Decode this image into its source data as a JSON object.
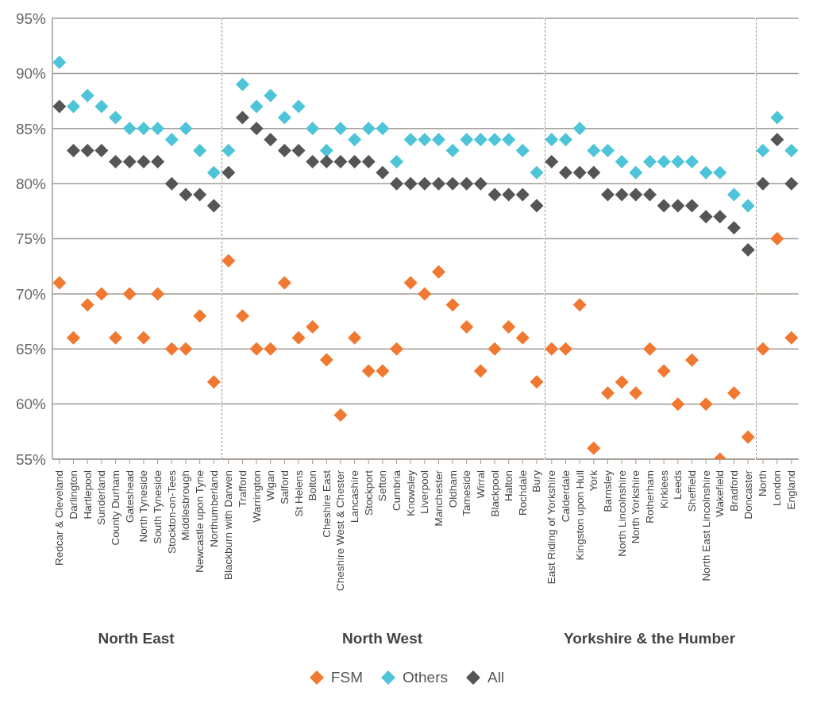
{
  "chart_data": [
    {
      "type": "scatter",
      "xlabel": "North East",
      "categories": [
        "Redcar &  Cleveland",
        "Darlington",
        "Hartlepool",
        "Sunderland",
        "County Durham",
        "Gateshead",
        "North Tyneside",
        "South Tyneside",
        "Stockton-on-Tees",
        "Middlesbrough",
        "Newcastle upon Tyne",
        "Northumberland"
      ],
      "series": [
        {
          "name": "FSM",
          "color": "#f07830",
          "values": [
            71,
            66,
            69,
            70,
            66,
            70,
            66,
            70,
            65,
            65,
            68,
            62
          ]
        },
        {
          "name": "Others",
          "color": "#4ec4d8",
          "values": [
            91,
            87,
            88,
            87,
            86,
            85,
            85,
            85,
            84,
            85,
            83,
            81
          ]
        },
        {
          "name": "All",
          "color": "#555555",
          "values": [
            87,
            83,
            83,
            83,
            82,
            82,
            82,
            82,
            80,
            79,
            79,
            78
          ]
        }
      ],
      "ylim": [
        55,
        95
      ],
      "yticks": [
        {
          "value": 55,
          "label": "55%"
        },
        {
          "value": 60,
          "label": "60%"
        },
        {
          "value": 65,
          "label": "65%"
        },
        {
          "value": 70,
          "label": "70%"
        },
        {
          "value": 75,
          "label": "75%"
        },
        {
          "value": 80,
          "label": "80%"
        },
        {
          "value": 85,
          "label": "85%"
        },
        {
          "value": 90,
          "label": "90%"
        },
        {
          "value": 95,
          "label": "95%"
        }
      ],
      "grid": "y",
      "marker": "diamond",
      "legend": "bottom"
    },
    {
      "type": "scatter",
      "xlabel": "North West",
      "categories": [
        "Blackburn with Darwen",
        "Trafford",
        "Warrington",
        "Wigan",
        "Salford",
        "St Helens",
        "Bolton",
        "Cheshire East",
        "Cheshire West & Chester",
        "Lancashire",
        "Stockport",
        "Sefton",
        "Cumbria",
        "Knowsley",
        "Liverpool",
        "Manchester",
        "Oldham",
        "Tameside",
        "Wirral",
        "Blackpool",
        "Halton",
        "Rochdale",
        "Bury"
      ],
      "series": [
        {
          "color": "#f07830",
          "values": [
            73,
            68,
            65,
            65,
            71,
            66,
            67,
            64,
            59,
            66,
            63,
            63,
            65,
            71,
            70,
            72,
            69,
            67,
            63,
            65,
            67,
            66,
            62
          ]
        },
        {
          "color": "#4ec4d8",
          "values": [
            83,
            89,
            87,
            88,
            86,
            87,
            85,
            83,
            85,
            84,
            85,
            85,
            82,
            84,
            84,
            84,
            83,
            84,
            84,
            84,
            84,
            83,
            81
          ]
        },
        {
          "color": "#555555",
          "values": [
            81,
            86,
            85,
            84,
            83,
            83,
            82,
            82,
            82,
            82,
            82,
            81,
            80,
            80,
            80,
            80,
            80,
            80,
            80,
            79,
            79,
            79,
            78
          ]
        }
      ],
      "ylim": [
        55,
        95
      ],
      "yticks": [
        55,
        60,
        65,
        70,
        75,
        80,
        85,
        90,
        95
      ],
      "grid": "y",
      "marker": "diamond",
      "tick_labels": "x"
    },
    {
      "type": "scatter",
      "xlabel": "Yorkshire & the Humber",
      "categories": [
        "East Riding of Yorkshire",
        "Calderdale",
        "Kingston upon Hull",
        "York",
        "Barnsley",
        "North Lincolnshire",
        "North Yorkshire",
        "Rotherham",
        "Kirklees",
        "Leeds",
        "Sheffield",
        "North East Lincolnshire",
        "Wakefield",
        "Bradford",
        "Doncaster"
      ],
      "series": [
        {
          "color": "#f07830",
          "values": [
            65,
            65,
            69,
            56,
            61,
            62,
            61,
            65,
            63,
            60,
            64,
            60,
            55,
            61,
            57
          ]
        },
        {
          "color": "#4ec4d8",
          "values": [
            84,
            84,
            85,
            83,
            83,
            82,
            81,
            82,
            82,
            82,
            82,
            81,
            81,
            79,
            78
          ]
        },
        {
          "color": "#555555",
          "values": [
            82,
            81,
            81,
            81,
            79,
            79,
            79,
            79,
            78,
            78,
            78,
            77,
            77,
            76,
            74
          ]
        }
      ],
      "ylim": [
        55,
        95
      ],
      "yticks": [
        55,
        60,
        65,
        70,
        75,
        80,
        85,
        90,
        95
      ],
      "grid": "y",
      "marker": "diamond",
      "tick_labels": "x"
    },
    {
      "type": "scatter",
      "categories": [
        "North",
        "London",
        "England"
      ],
      "series": [
        {
          "color": "#f07830",
          "values": [
            65,
            75,
            66
          ]
        },
        {
          "color": "#4ec4d8",
          "values": [
            83,
            86,
            83
          ]
        },
        {
          "color": "#555555",
          "values": [
            80,
            84,
            80
          ]
        }
      ],
      "ylim": [
        55,
        95
      ],
      "yticks": [
        55,
        60,
        65,
        70,
        75,
        80,
        85,
        90,
        95
      ],
      "grid": "y",
      "marker": "diamond",
      "tick_labels": "x"
    }
  ]
}
